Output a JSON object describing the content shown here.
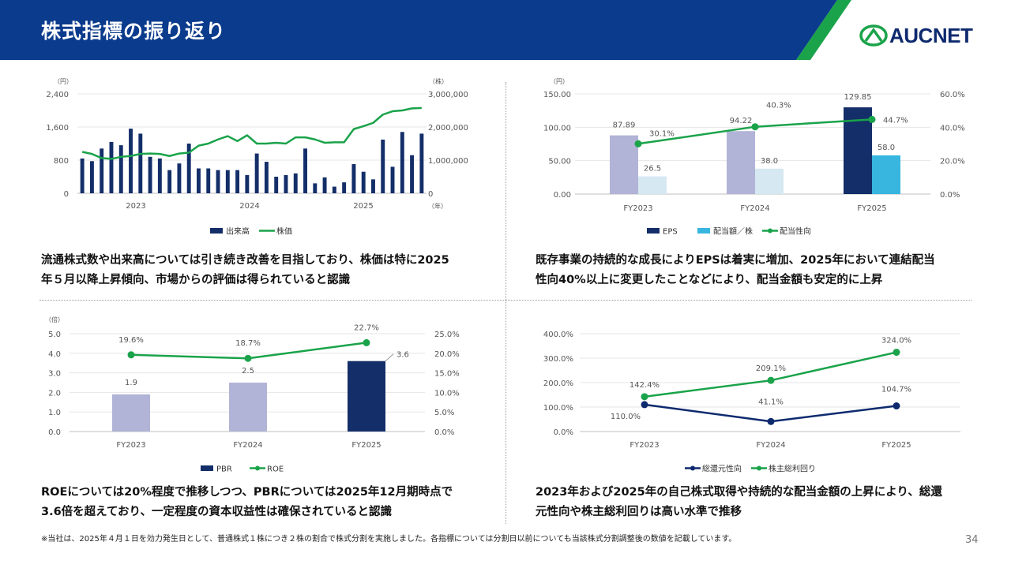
{
  "header": {
    "title": "株式指標の振り返り",
    "logo_text": "AUCNET"
  },
  "colors": {
    "navy": "#0b3b8c",
    "dark_navy": "#0e2a6e",
    "green": "#1aa34a",
    "lavender": "#b1b4d6",
    "light_blue": "#d6e8f2",
    "sky": "#38b6e0",
    "bar_navy": "#132e68"
  },
  "captions": {
    "c1": [
      "流通株式数や出来高については引き続き改善を目指しており、株価は特に2025",
      "年５月以降上昇傾向、市場からの評価は得られていると認識"
    ],
    "c2": [
      "既存事業の持続的な成長によりEPSは着実に増加、2025年において連結配当",
      "性向40%以上に変更したことなどにより、配当金額も安定的に上昇"
    ],
    "c3": [
      "ROEについては20%程度で推移しつつ、PBRについては2025年12月期時点で",
      "3.6倍を超えており、一定程度の資本収益性は確保されていると認識"
    ],
    "c4": [
      "2023年および2025年の自己株式取得や持続的な配当金額の上昇により、総還",
      "元性向や株主総利回りは高い水準で推移"
    ]
  },
  "footnote": "※当社は、2025年４月１日を効力発生日として、普通株式１株につき２株の割合で株式分割を実施しました。各指標については分割日以前についても当該株式分割調整後の数値を記載しています。",
  "page_number": "34",
  "chart_data": [
    {
      "id": "c1",
      "type": "bar+line",
      "left_unit": "（円）",
      "right_unit": "（株）",
      "x_unit": "（年）",
      "left_ylim": [
        0,
        2400
      ],
      "left_ticks": [
        "0",
        "800",
        "1,600",
        "2,400"
      ],
      "right_ylim": [
        0,
        3000000
      ],
      "right_ticks": [
        "0",
        "1,000,000",
        "2,000,000",
        "3,000,000"
      ],
      "year_labels": [
        "2023",
        "2024",
        "2025"
      ],
      "legend": [
        "出来高",
        "株価"
      ],
      "volume": [
        1050000,
        970000,
        1350000,
        1550000,
        1450000,
        1950000,
        1800000,
        1100000,
        1050000,
        700000,
        900000,
        1500000,
        750000,
        750000,
        700000,
        700000,
        700000,
        550000,
        1200000,
        950000,
        500000,
        550000,
        600000,
        1350000,
        300000,
        480000,
        200000,
        330000,
        880000,
        650000,
        420000,
        1620000,
        800000,
        1850000,
        1150000,
        1800000
      ],
      "price": [
        1000,
        950,
        850,
        830,
        880,
        900,
        950,
        960,
        950,
        900,
        960,
        980,
        1150,
        1200,
        1300,
        1380,
        1260,
        1400,
        1200,
        1200,
        1220,
        1200,
        1350,
        1350,
        1300,
        1220,
        1230,
        1230,
        1550,
        1620,
        1700,
        1900,
        1980,
        2000,
        2050,
        2060
      ]
    },
    {
      "id": "c2",
      "type": "bar+line",
      "left_unit": "（円）",
      "left_ylim": [
        0,
        150
      ],
      "left_ticks": [
        "0.00",
        "50.00",
        "100.00",
        "150.00"
      ],
      "right_ylim": [
        0,
        60
      ],
      "right_ticks": [
        "0.0%",
        "20.0%",
        "40.0%",
        "60.0%"
      ],
      "categories": [
        "FY2023",
        "FY2024",
        "FY2025"
      ],
      "series": [
        {
          "name": "EPS",
          "values": [
            87.89,
            94.22,
            129.85
          ],
          "labels": [
            "87.89",
            "94.22",
            "129.85"
          ]
        },
        {
          "name": "配当額／株",
          "values": [
            26.5,
            38.0,
            58.0
          ],
          "labels": [
            "26.5",
            "38.0",
            "58.0"
          ]
        },
        {
          "name": "配当性向",
          "values": [
            30.1,
            40.3,
            44.7
          ],
          "labels": [
            "30.1%",
            "40.3%",
            "44.7%"
          ]
        }
      ]
    },
    {
      "id": "c3",
      "type": "bar+line",
      "left_unit": "（倍）",
      "left_ylim": [
        0,
        5
      ],
      "left_ticks": [
        "0.0",
        "1.0",
        "2.0",
        "3.0",
        "4.0",
        "5.0"
      ],
      "right_ylim": [
        0,
        25
      ],
      "right_ticks": [
        "0.0%",
        "5.0%",
        "10.0%",
        "15.0%",
        "20.0%",
        "25.0%"
      ],
      "categories": [
        "FY2023",
        "FY2024",
        "FY2025"
      ],
      "series": [
        {
          "name": "PBR",
          "values": [
            1.9,
            2.5,
            3.6
          ],
          "labels": [
            "1.9",
            "2.5",
            "3.6"
          ]
        },
        {
          "name": "ROE",
          "values": [
            19.6,
            18.7,
            22.7
          ],
          "labels": [
            "19.6%",
            "18.7%",
            "22.7%"
          ]
        }
      ]
    },
    {
      "id": "c4",
      "type": "line",
      "ylim": [
        0,
        400
      ],
      "ticks": [
        "0.0%",
        "100.0%",
        "200.0%",
        "300.0%",
        "400.0%"
      ],
      "categories": [
        "FY2023",
        "FY2024",
        "FY2025"
      ],
      "series": [
        {
          "name": "総還元性向",
          "values": [
            110.0,
            41.1,
            104.7
          ],
          "labels": [
            "110.0%",
            "41.1%",
            "104.7%"
          ]
        },
        {
          "name": "株主総利回り",
          "values": [
            142.4,
            209.1,
            324.0
          ],
          "labels": [
            "142.4%",
            "209.1%",
            "324.0%"
          ]
        }
      ]
    }
  ]
}
